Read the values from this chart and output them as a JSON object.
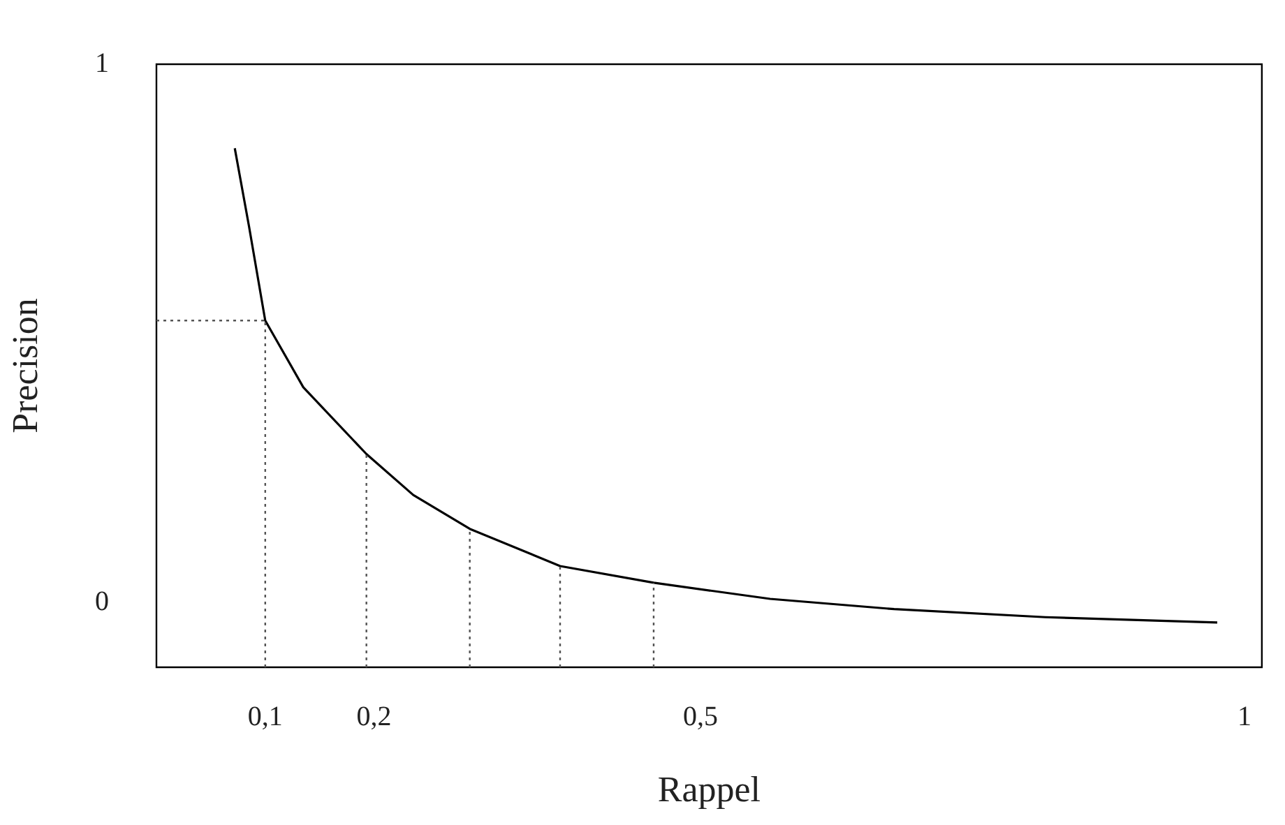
{
  "chart_data": {
    "type": "line",
    "xlabel": "Rappel",
    "ylabel": "Precision",
    "xlim": [
      0,
      1.016
    ],
    "ylim": [
      -0.12,
      1
    ],
    "xticks": [
      {
        "value": 0.1,
        "label": "0,1"
      },
      {
        "value": 0.2,
        "label": "0,2"
      },
      {
        "value": 0.5,
        "label": "0,5"
      },
      {
        "value": 1,
        "label": "1"
      }
    ],
    "yticks": [
      0,
      1
    ],
    "grid": false,
    "legend": false,
    "marker": "none",
    "line_style": "solid",
    "series": [
      {
        "color": "#000000",
        "x": [
          0.072,
          0.085,
          0.1,
          0.135,
          0.193,
          0.236,
          0.288,
          0.371,
          0.457,
          0.564,
          0.678,
          0.817,
          0.975
        ],
        "values": [
          0.844,
          0.7,
          0.524,
          0.4,
          0.276,
          0.2,
          0.137,
          0.068,
          0.037,
          0.007,
          -0.012,
          -0.027,
          -0.037
        ]
      }
    ],
    "ref_lines": [
      {
        "axis": "y",
        "value": 0.524,
        "line_style": "dotted",
        "color": "#555555"
      },
      {
        "axis": "x",
        "value": 0.1,
        "line_style": "dotted",
        "color": "#555555"
      },
      {
        "axis": "x",
        "value": 0.193,
        "line_style": "dotted",
        "color": "#555555"
      },
      {
        "axis": "x",
        "value": 0.288,
        "line_style": "dotted",
        "color": "#555555"
      },
      {
        "axis": "x",
        "value": 0.371,
        "line_style": "dotted",
        "color": "#555555"
      },
      {
        "axis": "x",
        "value": 0.457,
        "line_style": "dotted",
        "color": "#555555"
      }
    ]
  }
}
